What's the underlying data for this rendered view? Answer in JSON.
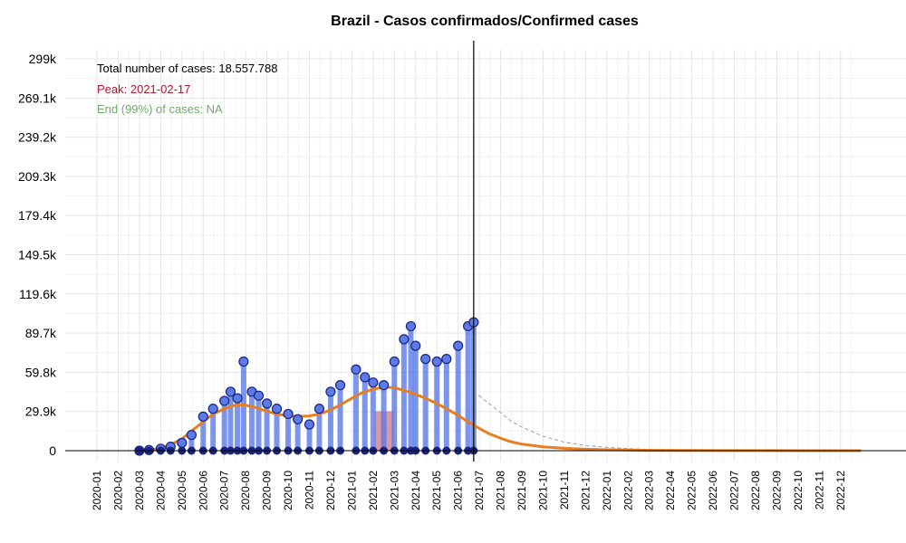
{
  "chart_data": {
    "type": "line",
    "title": "Brazil - Casos confirmados/Confirmed cases",
    "y_ticks": [
      "0",
      "29.9k",
      "59.8k",
      "89.7k",
      "119.6k",
      "149.5k",
      "179.4k",
      "209.3k",
      "239.2k",
      "269.1k",
      "299k"
    ],
    "y_tick_values": [
      0,
      29900,
      59800,
      89700,
      119600,
      149500,
      179400,
      209300,
      239200,
      269100,
      299000
    ],
    "ylim": [
      0,
      299000
    ],
    "x_ticks": [
      "2020-01",
      "2020-02",
      "2020-03",
      "2020-04",
      "2020-05",
      "2020-06",
      "2020-07",
      "2020-08",
      "2020-09",
      "2020-10",
      "2020-11",
      "2020-12",
      "2021-01",
      "2021-02",
      "2021-03",
      "2021-04",
      "2021-05",
      "2021-06",
      "2021-07",
      "2021-08",
      "2021-09",
      "2021-10",
      "2021-11",
      "2021-12",
      "2022-01",
      "2022-02",
      "2022-03",
      "2022-04",
      "2022-05",
      "2022-06",
      "2022-07",
      "2022-08",
      "2022-09",
      "2022-10",
      "2022-11",
      "2022-12"
    ],
    "grid": true,
    "current_date_line": "2021-06-23",
    "peak_band": {
      "start": "2021-02-03",
      "end": "2021-02-28"
    },
    "annotations": [
      {
        "text": "Total number of cases: 18.557.788",
        "color": "#000000"
      },
      {
        "text": "Peak: 2021-02-17",
        "color": "#b2182b"
      },
      {
        "text": "End (99%) of cases: NA",
        "color": "#74a96f"
      }
    ],
    "series": [
      {
        "role": "observed daily cases (points)",
        "x": [
          "2020-03-01",
          "2020-03-15",
          "2020-04-01",
          "2020-04-15",
          "2020-05-01",
          "2020-05-15",
          "2020-06-01",
          "2020-06-15",
          "2020-07-01",
          "2020-07-10",
          "2020-07-20",
          "2020-07-29",
          "2020-08-10",
          "2020-08-20",
          "2020-09-01",
          "2020-09-15",
          "2020-10-01",
          "2020-10-15",
          "2020-11-01",
          "2020-11-15",
          "2020-12-01",
          "2020-12-15",
          "2021-01-07",
          "2021-01-20",
          "2021-02-01",
          "2021-02-15",
          "2021-03-01",
          "2021-03-15",
          "2021-03-25",
          "2021-04-01",
          "2021-04-15",
          "2021-05-01",
          "2021-05-15",
          "2021-06-01",
          "2021-06-15",
          "2021-06-23"
        ],
        "values": [
          0,
          500,
          1500,
          3000,
          6000,
          12000,
          26000,
          32000,
          38000,
          45000,
          40000,
          68000,
          45000,
          42000,
          36000,
          32000,
          28000,
          24000,
          20000,
          32000,
          45000,
          50000,
          62000,
          56000,
          52000,
          50000,
          68000,
          85000,
          95000,
          80000,
          70000,
          68000,
          70000,
          80000,
          95000,
          98000
        ],
        "color": "#5b7be8"
      },
      {
        "role": "model fit",
        "x": [
          "2020-02-25",
          "2020-03-15",
          "2020-04-01",
          "2020-04-15",
          "2020-05-01",
          "2020-05-15",
          "2020-06-01",
          "2020-06-15",
          "2020-07-01",
          "2020-07-15",
          "2020-07-29",
          "2020-08-15",
          "2020-09-01",
          "2020-09-15",
          "2020-10-01",
          "2020-10-15",
          "2020-11-01",
          "2020-11-15",
          "2020-12-01",
          "2020-12-15",
          "2021-01-01",
          "2021-01-15",
          "2021-02-01",
          "2021-02-17",
          "2021-03-01",
          "2021-03-15",
          "2021-04-01",
          "2021-04-15",
          "2021-05-01",
          "2021-05-15",
          "2021-06-01",
          "2021-06-15",
          "2021-07-01",
          "2021-07-15",
          "2021-08-01",
          "2021-08-15",
          "2021-09-01",
          "2021-10-01",
          "2021-11-01",
          "2021-12-01",
          "2022-01-01",
          "2022-02-01",
          "2022-03-01",
          "2022-05-01",
          "2022-07-01",
          "2022-09-01",
          "2022-11-01",
          "2022-12-31"
        ],
        "values": [
          0,
          500,
          1800,
          4500,
          9000,
          15000,
          22000,
          28000,
          32000,
          34500,
          35000,
          33000,
          30000,
          28000,
          26500,
          26000,
          26500,
          28000,
          31000,
          35000,
          40000,
          44000,
          47000,
          48500,
          48000,
          46000,
          43000,
          40000,
          36000,
          32000,
          27000,
          22000,
          17000,
          13000,
          9500,
          7000,
          5000,
          3000,
          1800,
          1100,
          700,
          450,
          300,
          150,
          80,
          40,
          20,
          10
        ],
        "color": "#e67e22"
      },
      {
        "role": "projection (dashed)",
        "x": [
          "2021-06-23",
          "2021-07-01",
          "2021-07-15",
          "2021-08-01",
          "2021-08-15",
          "2021-09-01",
          "2021-10-01",
          "2021-11-01",
          "2021-12-01",
          "2022-01-01",
          "2022-02-01",
          "2022-03-01",
          "2022-05-01",
          "2022-07-01",
          "2022-09-01",
          "2022-11-01",
          "2022-12-31"
        ],
        "values": [
          45000,
          42000,
          36000,
          29000,
          23000,
          18000,
          11000,
          6500,
          4000,
          2500,
          1600,
          1000,
          450,
          200,
          90,
          40,
          15
        ],
        "color": "#9e9e9e"
      }
    ]
  }
}
